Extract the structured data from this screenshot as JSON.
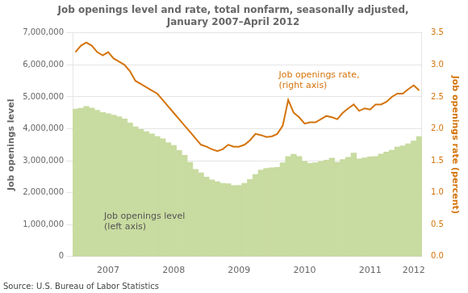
{
  "chart_data": {
    "type": "bar",
    "title": "Job openings level and rate, total nonfarm, seasonally adjusted,\nJanuary 2007–April 2012",
    "source": "Source: U.S. Bureau of Labor Statistics",
    "ylabel": "Job openings level",
    "y2label": "Job openings rate (percent)",
    "annotations": [
      {
        "text": "Job openings level\n(left axis)",
        "axis": "y"
      },
      {
        "text": "Job openings rate,\n(right axis)",
        "axis": "y2"
      }
    ],
    "categories": [
      null,
      null,
      null,
      null,
      null,
      null,
      "2007",
      null,
      null,
      null,
      null,
      null,
      null,
      null,
      null,
      null,
      null,
      null,
      "2008",
      null,
      null,
      null,
      null,
      null,
      null,
      null,
      null,
      null,
      null,
      null,
      "2009",
      null,
      null,
      null,
      null,
      null,
      null,
      null,
      null,
      null,
      null,
      null,
      "2010",
      null,
      null,
      null,
      null,
      null,
      null,
      null,
      null,
      null,
      null,
      null,
      "2011",
      null,
      null,
      null,
      null,
      null,
      null,
      null,
      "2012",
      null
    ],
    "series": [
      {
        "type": "bar",
        "color": "#c8dba0",
        "values": [
          4620000,
          4640000,
          4700000,
          4650000,
          4580000,
          4510000,
          4470000,
          4430000,
          4380000,
          4310000,
          4180000,
          4060000,
          3980000,
          3910000,
          3840000,
          3760000,
          3690000,
          3560000,
          3480000,
          3320000,
          3170000,
          2950000,
          2730000,
          2620000,
          2490000,
          2400000,
          2340000,
          2290000,
          2280000,
          2220000,
          2230000,
          2290000,
          2410000,
          2570000,
          2710000,
          2760000,
          2780000,
          2790000,
          2940000,
          3130000,
          3200000,
          3130000,
          2980000,
          2920000,
          2940000,
          2980000,
          3020000,
          3080000,
          2950000,
          3040000,
          3110000,
          3240000,
          3060000,
          3090000,
          3120000,
          3130000,
          3210000,
          3270000,
          3330000,
          3430000,
          3470000,
          3530000,
          3620000,
          3760000
        ]
      },
      {
        "type": "line",
        "axis": "y2",
        "color": "#d4730a",
        "values": [
          3.2,
          3.3,
          3.35,
          3.3,
          3.2,
          3.15,
          3.2,
          3.1,
          3.05,
          3.0,
          2.9,
          2.75,
          2.7,
          2.65,
          2.6,
          2.55,
          2.45,
          2.35,
          2.25,
          2.15,
          2.05,
          1.95,
          1.85,
          1.75,
          1.72,
          1.68,
          1.65,
          1.68,
          1.75,
          1.72,
          1.72,
          1.75,
          1.82,
          1.92,
          1.9,
          1.87,
          1.88,
          1.92,
          2.05,
          2.45,
          2.25,
          2.18,
          2.08,
          2.1,
          2.1,
          2.15,
          2.2,
          2.18,
          2.15,
          2.25,
          2.32,
          2.38,
          2.28,
          2.32,
          2.3,
          2.38,
          2.38,
          2.42,
          2.5,
          2.55,
          2.55,
          2.62,
          2.68,
          2.6
        ]
      }
    ],
    "ylim": [
      0,
      7000000
    ],
    "yticks": [
      0,
      {
        "value": 1000000,
        "label": "1,000,000"
      },
      {
        "value": 2000000,
        "label": "2,000,000"
      },
      {
        "value": 3000000,
        "label": "3,000,000"
      },
      {
        "value": 4000000,
        "label": "4,000,000"
      },
      {
        "value": 5000000,
        "label": "5,000,000"
      },
      {
        "value": 6000000,
        "label": "6,000,000"
      },
      {
        "value": 7000000,
        "label": "7,000,000"
      }
    ],
    "y2lim": [
      0.0,
      3.5
    ],
    "y2ticks": [
      {
        "value": 0.0,
        "label": "0.0"
      },
      0.5,
      {
        "value": 1.0,
        "label": "1.0"
      },
      1.5,
      {
        "value": 2.0,
        "label": "2.0"
      },
      2.5,
      {
        "value": 3.0,
        "label": "3.0"
      },
      3.5
    ],
    "grid": true
  }
}
